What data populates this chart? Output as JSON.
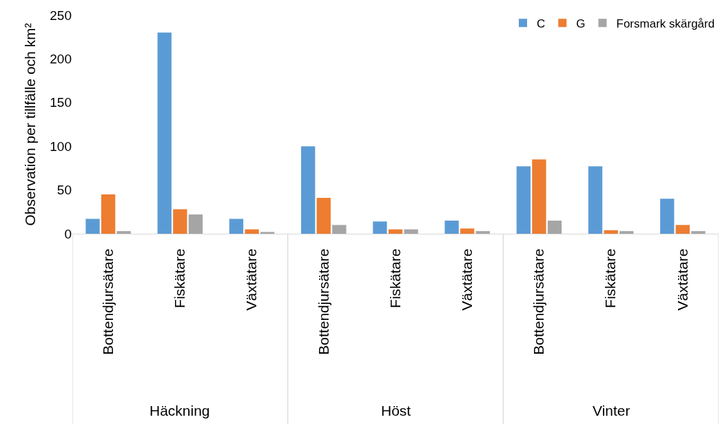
{
  "chart_data": {
    "type": "bar",
    "ylabel": "Observation per tillfälle och km²",
    "categories": [
      "Bottendjursätare",
      "Fiskätare",
      "Växtätare",
      "Bottendjursätare",
      "Fiskätare",
      "Växtätare",
      "Bottendjursätare",
      "Fiskätare",
      "Växtätare"
    ],
    "series": [
      {
        "name": "C",
        "color": "#5b9bd5",
        "values": [
          17,
          230,
          17,
          100,
          14,
          15,
          77,
          77,
          40
        ]
      },
      {
        "name": "G",
        "color": "#ed7d31",
        "values": [
          45,
          28,
          5,
          41,
          5,
          6,
          85,
          4,
          10
        ]
      },
      {
        "name": "Forsmark skärgård",
        "color": "#a5a5a5",
        "values": [
          3,
          22,
          2,
          10,
          5,
          3,
          15,
          3,
          3
        ]
      }
    ],
    "annotations": [
      "Häckning",
      "Höst",
      "Vinter"
    ],
    "ylim": [
      0,
      250
    ],
    "yticks": [
      0,
      50,
      100,
      150,
      200,
      250
    ],
    "grid": false,
    "legend": "top right"
  }
}
